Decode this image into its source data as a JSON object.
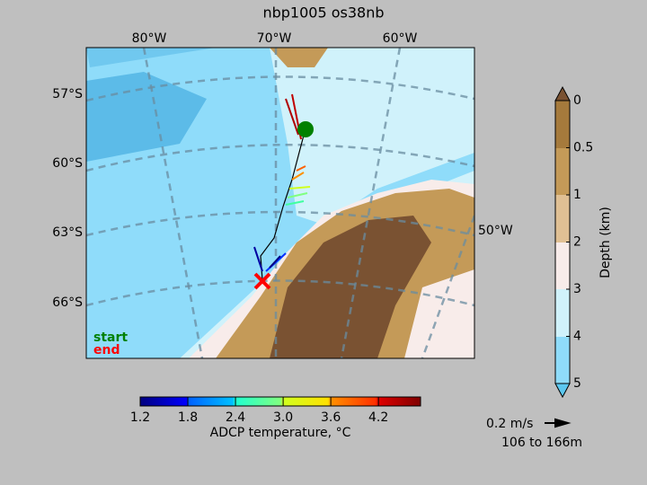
{
  "title": "nbp1005 os38nb",
  "map": {
    "lon_labels": [
      "80°W",
      "70°W",
      "60°W",
      "50°W"
    ],
    "lat_labels": [
      "57°S",
      "60°S",
      "63°S",
      "66°S"
    ],
    "legend": {
      "start": "start",
      "end": "end"
    }
  },
  "temperature_colorbar": {
    "label": "ADCP temperature, °C",
    "lim": [
      1.2,
      4.73
    ],
    "ticks": [
      1.2,
      1.8,
      2.4,
      {
        "value": 3,
        "label": "3.0"
      },
      3.6,
      4.2
    ]
  },
  "depth_colorbar": {
    "label": "Depth (km)",
    "ticks": [
      0,
      0.5,
      1,
      2,
      3,
      4,
      5
    ]
  },
  "scale": {
    "speed": "0.2 m/s",
    "depth_range": "106 to 166m"
  }
}
